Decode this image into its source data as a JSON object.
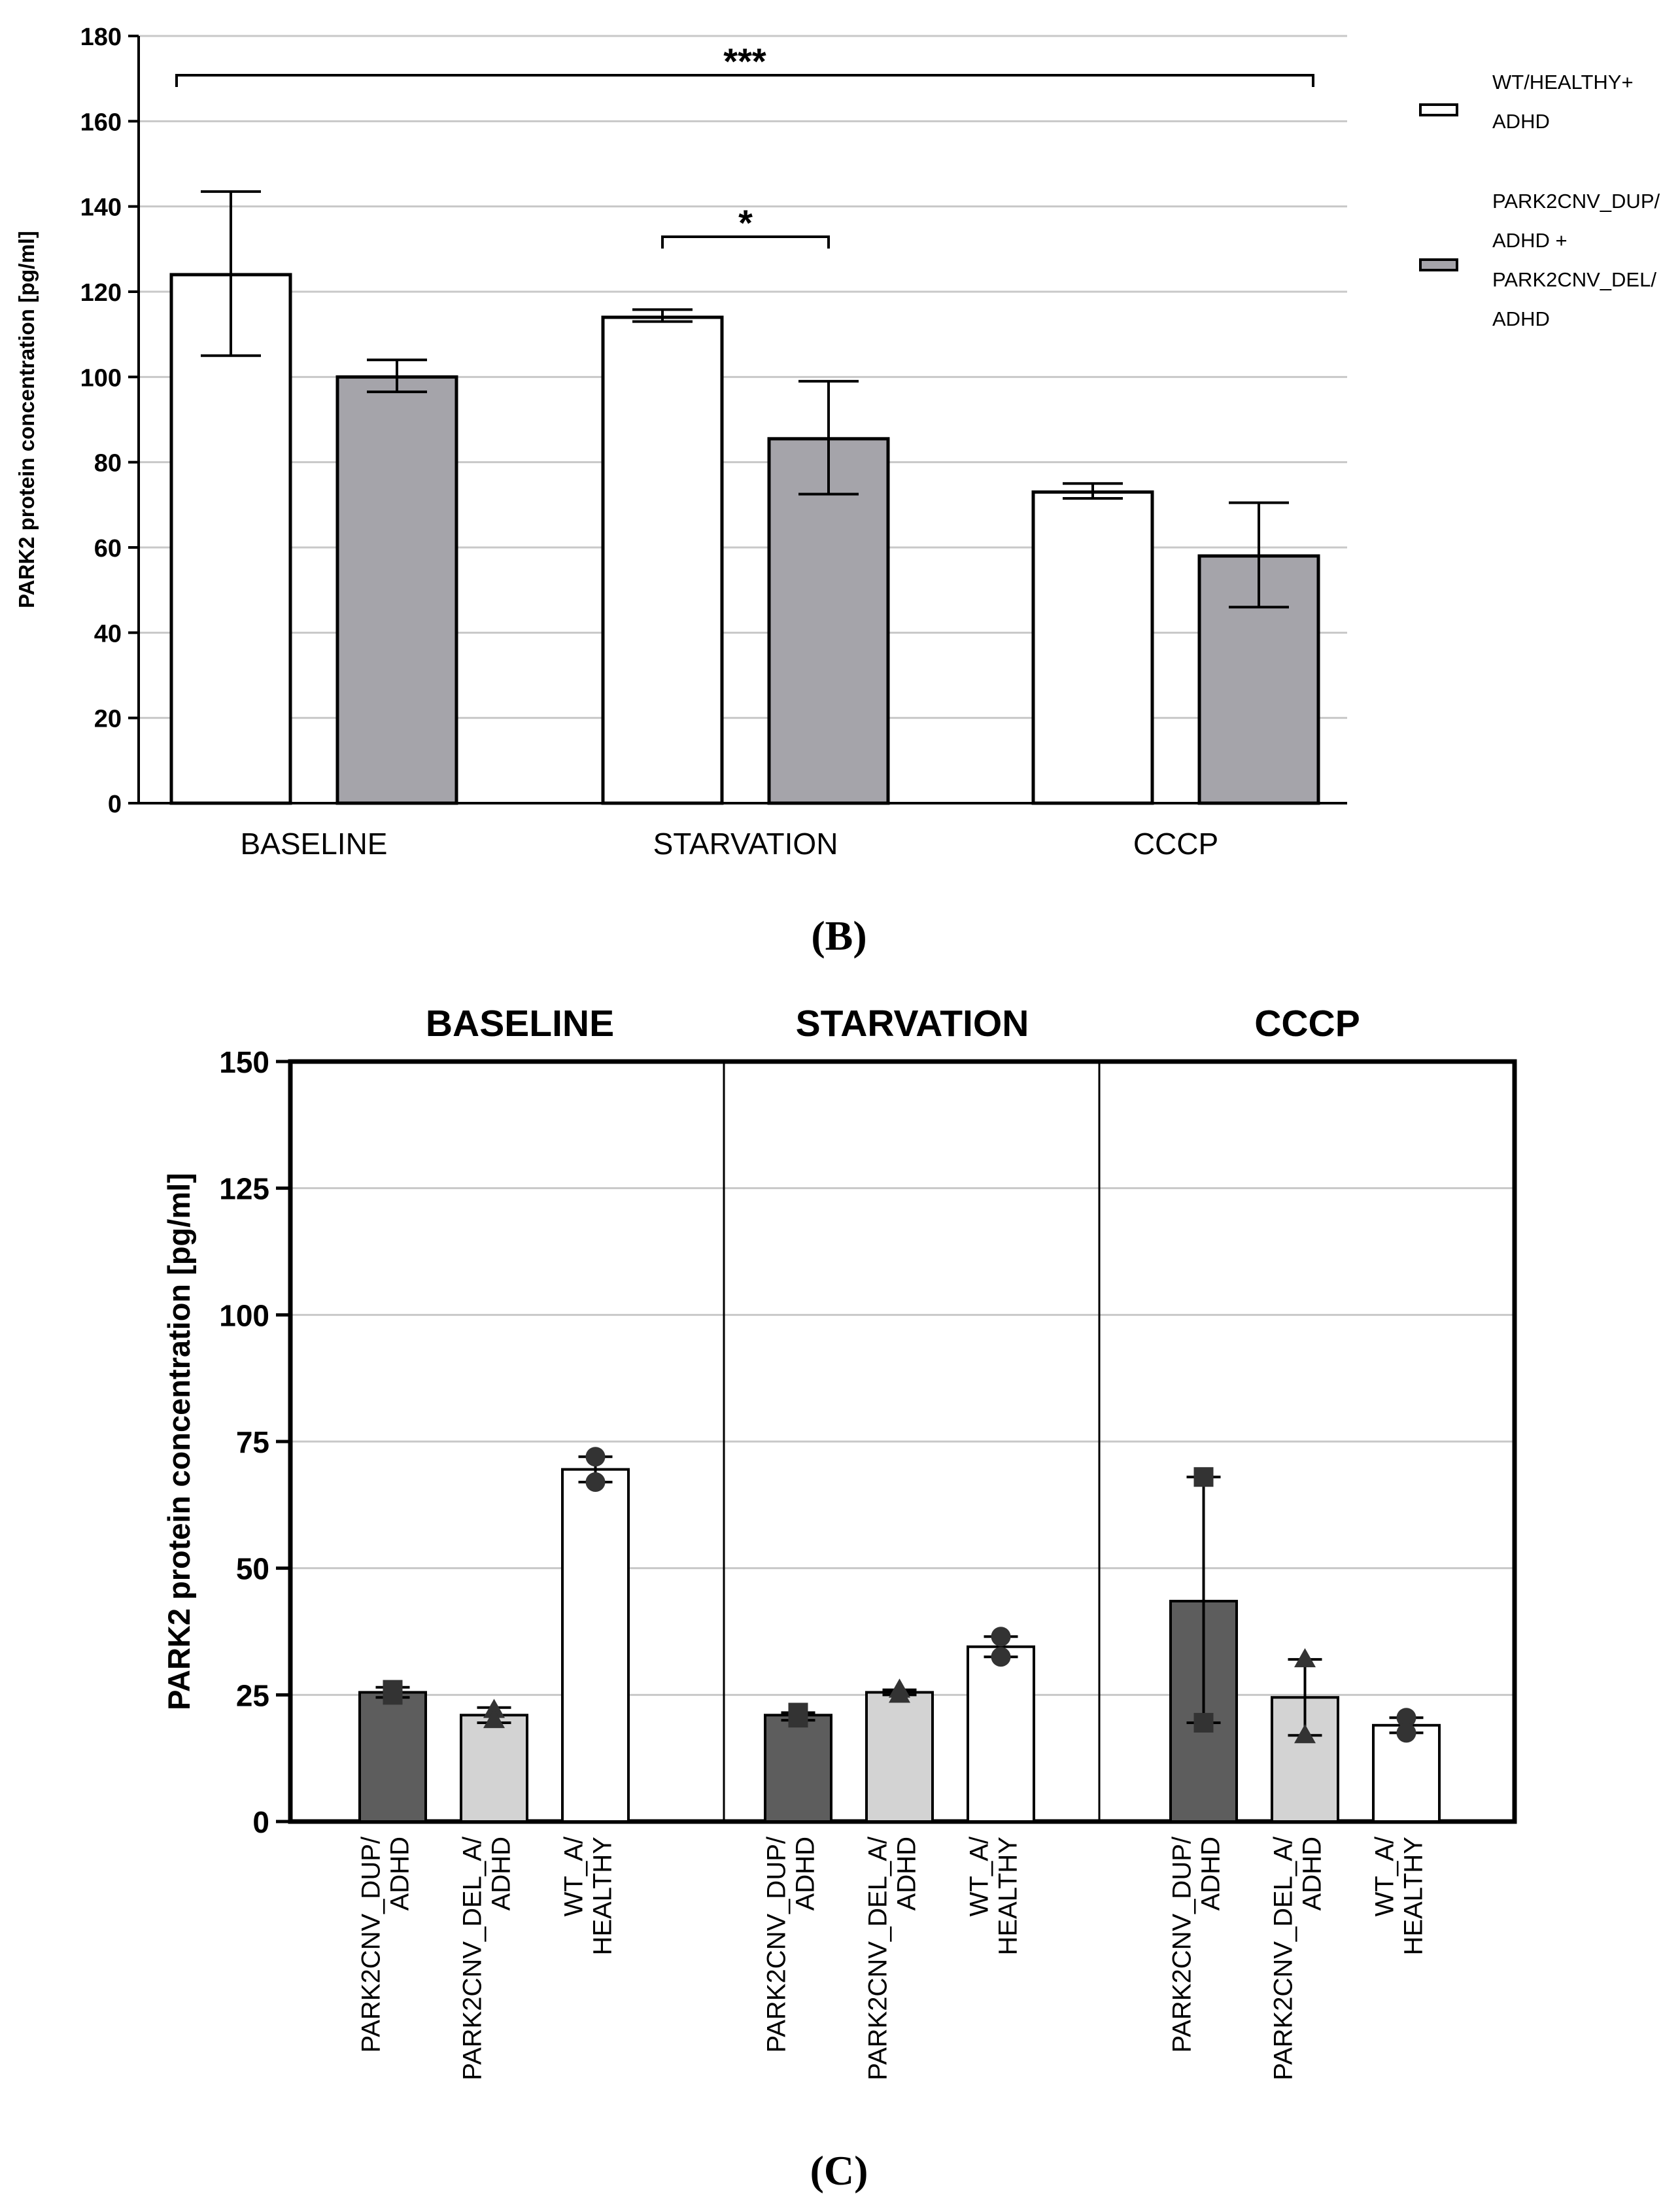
{
  "chart_data": [
    {
      "panel_label": "(B)",
      "type": "bar",
      "ylabel": "PARK2 protein concentration [pg/ml]",
      "ylim": [
        0,
        180
      ],
      "yticks": [
        0,
        20,
        40,
        60,
        80,
        100,
        120,
        140,
        160,
        180
      ],
      "grid": true,
      "categories": [
        "BASELINE",
        "STARVATION",
        "CCCP"
      ],
      "legend_position": "right",
      "series": [
        {
          "name": "WT/HEALTHY+ ADHD",
          "legend_lines": [
            "WT/HEALTHY+",
            "ADHD"
          ],
          "color": "#ffffff",
          "values": [
            124,
            114,
            73
          ],
          "error_low": [
            105,
            113,
            71.5
          ],
          "error_high": [
            143.5,
            115.8,
            75
          ]
        },
        {
          "name": "PARK2CNV_DUP/ ADHD + PARK2CNV_DEL/ ADHD",
          "legend_lines": [
            "PARK2CNV_DUP/",
            "ADHD +",
            "PARK2CNV_DEL/",
            "ADHD"
          ],
          "color": "#a5a4aa",
          "values": [
            100,
            85.5,
            58
          ],
          "error_low": [
            96.5,
            72.5,
            46
          ],
          "error_high": [
            104,
            99,
            70.5
          ]
        }
      ],
      "annotations": [
        {
          "text": "***",
          "from": [
            "BASELINE",
            0
          ],
          "to": [
            "CCCP",
            1
          ]
        },
        {
          "text": "*",
          "from": [
            "STARVATION",
            0
          ],
          "to": [
            "STARVATION",
            1
          ]
        }
      ]
    },
    {
      "panel_label": "(C)",
      "type": "bar",
      "ylabel": "PARK2 protein concentration [pg/ml]",
      "ylim": [
        0,
        150
      ],
      "yticks": [
        0,
        25,
        50,
        75,
        100,
        125,
        150
      ],
      "grid": true,
      "groups": [
        "BASELINE",
        "STARVATION",
        "CCCP"
      ],
      "bar_labels": [
        [
          "PARK2CNV_DUP/",
          "ADHD"
        ],
        [
          "PARK2CNV_DEL_A/",
          "ADHD"
        ],
        [
          "WT_A/",
          "HEALTHY"
        ]
      ],
      "bar_colors": [
        "#5d5d5d",
        "#d3d3d3",
        "#ffffff"
      ],
      "markers": [
        "square",
        "triangle",
        "circle"
      ],
      "values": [
        [
          25.5,
          21,
          69.5
        ],
        [
          21,
          25.5,
          34.5
        ],
        [
          43.5,
          24.5,
          19
        ]
      ],
      "error_low": [
        [
          24.5,
          19.5,
          67
        ],
        [
          20,
          25,
          32.5
        ],
        [
          19.5,
          17,
          17.5
        ]
      ],
      "error_high": [
        [
          26.5,
          22.5,
          72
        ],
        [
          21.5,
          26,
          36.5
        ],
        [
          68,
          32,
          20.5
        ]
      ],
      "points": [
        [
          [
            26,
            25
          ],
          [
            22,
            20
          ],
          [
            72,
            67
          ]
        ],
        [
          [
            21.5,
            20.5
          ],
          [
            26,
            25
          ],
          [
            36.5,
            32.5
          ]
        ],
        [
          [
            68,
            19.5
          ],
          [
            32,
            17
          ],
          [
            20.5,
            17.5
          ]
        ]
      ]
    }
  ]
}
